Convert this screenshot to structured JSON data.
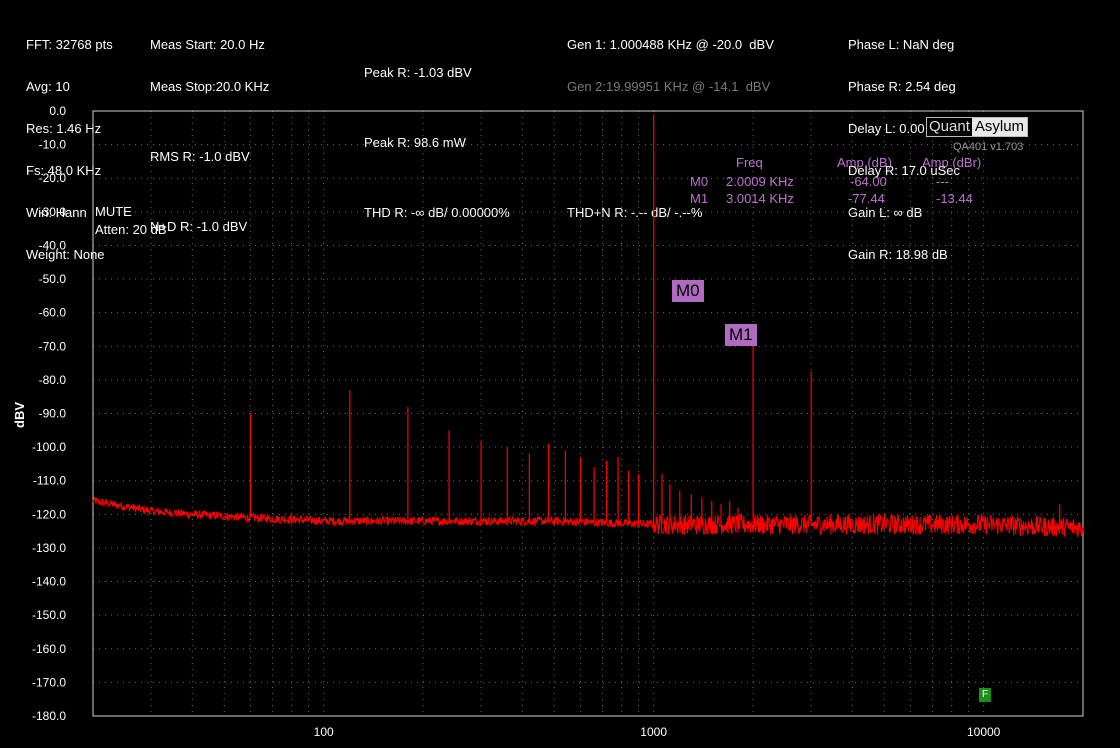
{
  "header": {
    "col1": [
      "FFT: 32768 pts",
      "Avg: 10",
      "Res: 1.46 Hz",
      "Fs: 48.0 KHz",
      "Win: Hann",
      "Weight: None"
    ],
    "col2": [
      "Meas Start: 20.0 Hz",
      "Meas Stop:20.0 KHz",
      "",
      "RMS R: -1.0 dBV",
      "",
      "N+D R: -1.0 dBV"
    ],
    "col3": [
      "",
      "Peak R: -1.03 dBV",
      "",
      "Peak R: 98.6 mW",
      "",
      "THD R: -∞ dB/ 0.00000%"
    ],
    "col4": [
      "Gen 1: 1.000488 KHz @ -20.0  dBV",
      "Gen 2:19.99951 KHz @ -14.1  dBV",
      "",
      "",
      "",
      "THD+N R: -.-- dB/ -.--%"
    ],
    "col5": [
      "Phase L: NaN deg",
      "Phase R: 2.54 deg",
      "Delay L: 0.00 Sec",
      "Delay R: 17.0 uSec",
      "Gain L: ∞ dB",
      "Gain R: 18.98 dB"
    ]
  },
  "plot": {
    "mute_text": "MUTE",
    "atten_text": "Atten: 20 dB",
    "logo_left": "Quant",
    "logo_right": "Asylum",
    "version": "QA401 v1.703",
    "marker_table": {
      "headers": [
        "Freq",
        "Amp (dB)",
        "Amp (dBr)"
      ],
      "rows": [
        {
          "name": "M0",
          "freq": "2.0009 KHz",
          "amp": "-64.00",
          "ampr": "---"
        },
        {
          "name": "M1",
          "freq": "3.0014 KHz",
          "amp": "-77.44",
          "ampr": "-13.44"
        }
      ]
    },
    "marker_tags": [
      "M0",
      "M1"
    ],
    "f_tag": "F"
  },
  "chart_data": {
    "type": "line",
    "title": "",
    "xlabel": "",
    "ylabel": "dBV",
    "x_scale": "log",
    "xlim": [
      20,
      20000
    ],
    "ylim": [
      -180,
      0
    ],
    "x_ticks": [
      100,
      1000,
      10000
    ],
    "x_tick_labels": [
      "100",
      "1000",
      "10000"
    ],
    "y_ticks": [
      0,
      -10,
      -20,
      -30,
      -40,
      -50,
      -60,
      -70,
      -80,
      -90,
      -100,
      -110,
      -120,
      -130,
      -140,
      -150,
      -160,
      -170,
      -180
    ],
    "y_tick_labels": [
      "0.0",
      "-10.0",
      "-20.0",
      "-30.0",
      "-40.0",
      "-50.0",
      "-60.0",
      "-70.0",
      "-80.0",
      "-90.0",
      "-100.0",
      "-110.0",
      "-120.0",
      "-130.0",
      "-140.0",
      "-150.0",
      "-160.0",
      "-170.0",
      "-180.0"
    ],
    "grid": true,
    "series": [
      {
        "color": "#ff0000",
        "noise_floor": [
          [
            20,
            -116
          ],
          [
            30,
            -119
          ],
          [
            40,
            -120
          ],
          [
            60,
            -121
          ],
          [
            100,
            -122
          ],
          [
            200,
            -122
          ],
          [
            500,
            -122
          ],
          [
            1000,
            -123
          ],
          [
            2000,
            -123
          ],
          [
            5000,
            -123
          ],
          [
            10000,
            -123
          ],
          [
            20000,
            -124
          ]
        ],
        "peaks": [
          [
            60,
            -90
          ],
          [
            120,
            -83
          ],
          [
            180,
            -88
          ],
          [
            240,
            -95
          ],
          [
            300,
            -98
          ],
          [
            360,
            -100
          ],
          [
            420,
            -102
          ],
          [
            480,
            -99
          ],
          [
            540,
            -101
          ],
          [
            600,
            -103
          ],
          [
            660,
            -106
          ],
          [
            720,
            -104
          ],
          [
            780,
            -103
          ],
          [
            840,
            -107
          ],
          [
            900,
            -108
          ],
          [
            1000.488,
            -1.03
          ],
          [
            1060,
            -108
          ],
          [
            1120,
            -111
          ],
          [
            1200,
            -113
          ],
          [
            1300,
            -114
          ],
          [
            1400,
            -115
          ],
          [
            1500,
            -116
          ],
          [
            1600,
            -117
          ],
          [
            1700,
            -116
          ],
          [
            1800,
            -118
          ],
          [
            2000.9,
            -64.0
          ],
          [
            3001.4,
            -77.44
          ],
          [
            17000,
            -117
          ]
        ]
      }
    ]
  }
}
